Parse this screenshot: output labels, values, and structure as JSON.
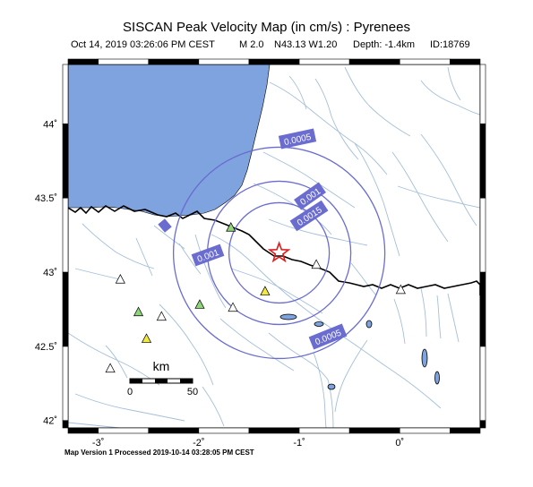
{
  "title": "SISCAN Peak Velocity Map (in cm/s) : Pyrenees",
  "event": {
    "datetime": "Oct 14, 2019 03:26:06 PM CEST",
    "magnitude": "M 2.0",
    "location": "N43.13 W1.20",
    "depth": "Depth: -1.4km",
    "id": "ID:18769"
  },
  "map": {
    "lon_range": [
      -3.3,
      0.8
    ],
    "lat_range": [
      41.95,
      44.4
    ],
    "lon_ticks": [
      {
        "value": -3,
        "label": "-3˚"
      },
      {
        "value": -2,
        "label": "-2˚"
      },
      {
        "value": -1,
        "label": "-1˚"
      },
      {
        "value": 0,
        "label": "0˚"
      }
    ],
    "lat_ticks": [
      {
        "value": 44,
        "label": "44˚"
      },
      {
        "value": 43.5,
        "label": "43.5˚"
      },
      {
        "value": 43,
        "label": "43˚"
      },
      {
        "value": 42.5,
        "label": "42.5˚"
      },
      {
        "value": 42,
        "label": "42˚"
      }
    ],
    "epicenter": {
      "lon": -1.2,
      "lat": 43.13
    },
    "contours": [
      "0.0005",
      "0.001",
      "0.0015"
    ],
    "contour_labels": [
      "0.0005",
      "0.001",
      "0.0015",
      "0.001",
      "0.0005"
    ],
    "scale_bar": {
      "unit": "km",
      "min_label": "0",
      "max_label": "50"
    },
    "colors": {
      "sea": "#7fa3de",
      "land": "#ffffff",
      "rivers": "#a4bfda",
      "contour": "#6a6cd0",
      "contour_label_bg": "#6a6cd0",
      "epicenter": "#e01b1b",
      "station_white": "#ffffff",
      "station_green": "#8fd67a",
      "station_yellow": "#f2ea41"
    },
    "stations": [
      {
        "lon": -2.78,
        "lat": 42.95,
        "color": "white"
      },
      {
        "lon": -2.6,
        "lat": 42.73,
        "color": "green"
      },
      {
        "lon": -2.37,
        "lat": 42.7,
        "color": "white"
      },
      {
        "lon": -2.52,
        "lat": 42.55,
        "color": "yellow"
      },
      {
        "lon": -2.88,
        "lat": 42.35,
        "color": "white"
      },
      {
        "lon": -1.99,
        "lat": 42.78,
        "color": "green"
      },
      {
        "lon": -1.68,
        "lat": 43.3,
        "color": "green"
      },
      {
        "lon": -1.66,
        "lat": 42.76,
        "color": "white"
      },
      {
        "lon": -1.34,
        "lat": 42.87,
        "color": "yellow"
      },
      {
        "lon": -0.83,
        "lat": 43.05,
        "color": "white"
      },
      {
        "lon": 0.01,
        "lat": 42.88,
        "color": "white"
      }
    ]
  },
  "footer": "Map Version 1 Processed 2019-10-14 03:28:05 PM CEST"
}
